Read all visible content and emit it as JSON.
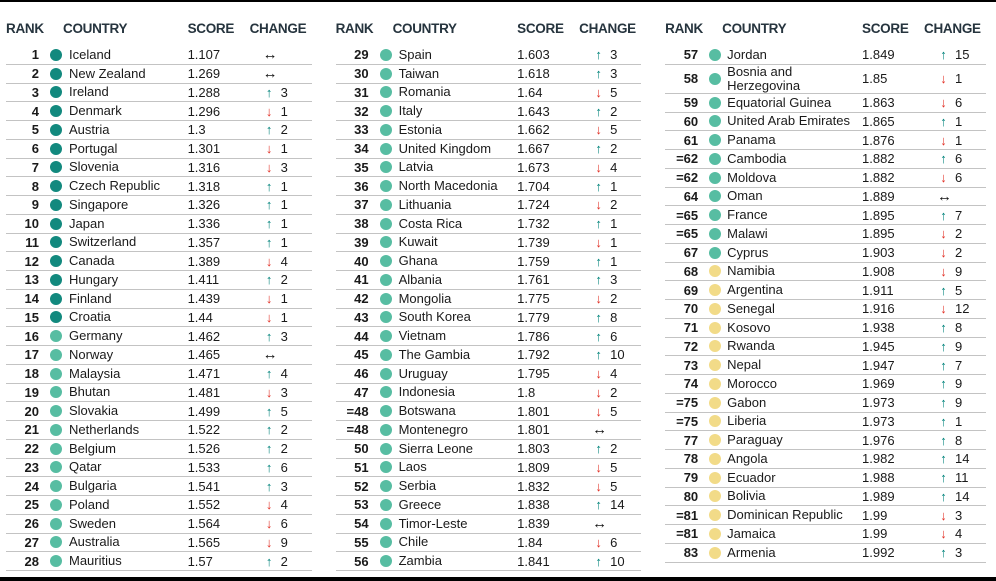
{
  "icons": {
    "up": "↑",
    "down": "↓",
    "same": "↔"
  },
  "colors": {
    "tier_dark": "#12897E",
    "tier_mid": "#57BDA2",
    "tier_yellow": "#F2DB88",
    "up_arrow": "#00837B",
    "down_arrow": "#E23127",
    "same_arrow": "#141414",
    "header_text": "#26343E",
    "body_text": "#1A1A1A",
    "row_line": "#C3C3C3",
    "frame": "#000000"
  },
  "chart_data": {
    "type": "table",
    "column_headers": [
      "RANK",
      "COUNTRY",
      "SCORE",
      "CHANGE"
    ],
    "legend_tiers": [
      "dark",
      "mid",
      "yellow"
    ],
    "column_groups": [
      {
        "rows": [
          {
            "rank": "1",
            "country": "Iceland",
            "score": "1.107",
            "tier": "dark",
            "change_dir": "same",
            "change_value": ""
          },
          {
            "rank": "2",
            "country": "New Zealand",
            "score": "1.269",
            "tier": "dark",
            "change_dir": "same",
            "change_value": ""
          },
          {
            "rank": "3",
            "country": "Ireland",
            "score": "1.288",
            "tier": "dark",
            "change_dir": "up",
            "change_value": "3"
          },
          {
            "rank": "4",
            "country": "Denmark",
            "score": "1.296",
            "tier": "dark",
            "change_dir": "down",
            "change_value": "1"
          },
          {
            "rank": "5",
            "country": "Austria",
            "score": "1.3",
            "tier": "dark",
            "change_dir": "up",
            "change_value": "2"
          },
          {
            "rank": "6",
            "country": "Portugal",
            "score": "1.301",
            "tier": "dark",
            "change_dir": "down",
            "change_value": "1"
          },
          {
            "rank": "7",
            "country": "Slovenia",
            "score": "1.316",
            "tier": "dark",
            "change_dir": "down",
            "change_value": "3"
          },
          {
            "rank": "8",
            "country": "Czech Republic",
            "score": "1.318",
            "tier": "dark",
            "change_dir": "up",
            "change_value": "1"
          },
          {
            "rank": "9",
            "country": "Singapore",
            "score": "1.326",
            "tier": "dark",
            "change_dir": "up",
            "change_value": "1"
          },
          {
            "rank": "10",
            "country": "Japan",
            "score": "1.336",
            "tier": "dark",
            "change_dir": "up",
            "change_value": "1"
          },
          {
            "rank": "11",
            "country": "Switzerland",
            "score": "1.357",
            "tier": "dark",
            "change_dir": "up",
            "change_value": "1"
          },
          {
            "rank": "12",
            "country": "Canada",
            "score": "1.389",
            "tier": "dark",
            "change_dir": "down",
            "change_value": "4"
          },
          {
            "rank": "13",
            "country": "Hungary",
            "score": "1.411",
            "tier": "dark",
            "change_dir": "up",
            "change_value": "2"
          },
          {
            "rank": "14",
            "country": "Finland",
            "score": "1.439",
            "tier": "dark",
            "change_dir": "down",
            "change_value": "1"
          },
          {
            "rank": "15",
            "country": "Croatia",
            "score": "1.44",
            "tier": "dark",
            "change_dir": "down",
            "change_value": "1"
          },
          {
            "rank": "16",
            "country": "Germany",
            "score": "1.462",
            "tier": "mid",
            "change_dir": "up",
            "change_value": "3"
          },
          {
            "rank": "17",
            "country": "Norway",
            "score": "1.465",
            "tier": "mid",
            "change_dir": "same",
            "change_value": ""
          },
          {
            "rank": "18",
            "country": "Malaysia",
            "score": "1.471",
            "tier": "mid",
            "change_dir": "up",
            "change_value": "4"
          },
          {
            "rank": "19",
            "country": "Bhutan",
            "score": "1.481",
            "tier": "mid",
            "change_dir": "down",
            "change_value": "3"
          },
          {
            "rank": "20",
            "country": "Slovakia",
            "score": "1.499",
            "tier": "mid",
            "change_dir": "up",
            "change_value": "5"
          },
          {
            "rank": "21",
            "country": "Netherlands",
            "score": "1.522",
            "tier": "mid",
            "change_dir": "up",
            "change_value": "2"
          },
          {
            "rank": "22",
            "country": "Belgium",
            "score": "1.526",
            "tier": "mid",
            "change_dir": "up",
            "change_value": "2"
          },
          {
            "rank": "23",
            "country": "Qatar",
            "score": "1.533",
            "tier": "mid",
            "change_dir": "up",
            "change_value": "6"
          },
          {
            "rank": "24",
            "country": "Bulgaria",
            "score": "1.541",
            "tier": "mid",
            "change_dir": "up",
            "change_value": "3"
          },
          {
            "rank": "25",
            "country": "Poland",
            "score": "1.552",
            "tier": "mid",
            "change_dir": "down",
            "change_value": "4"
          },
          {
            "rank": "26",
            "country": "Sweden",
            "score": "1.564",
            "tier": "mid",
            "change_dir": "down",
            "change_value": "6"
          },
          {
            "rank": "27",
            "country": "Australia",
            "score": "1.565",
            "tier": "mid",
            "change_dir": "down",
            "change_value": "9"
          },
          {
            "rank": "28",
            "country": "Mauritius",
            "score": "1.57",
            "tier": "mid",
            "change_dir": "up",
            "change_value": "2"
          }
        ]
      },
      {
        "rows": [
          {
            "rank": "29",
            "country": "Spain",
            "score": "1.603",
            "tier": "mid",
            "change_dir": "up",
            "change_value": "3"
          },
          {
            "rank": "30",
            "country": "Taiwan",
            "score": "1.618",
            "tier": "mid",
            "change_dir": "up",
            "change_value": "3"
          },
          {
            "rank": "31",
            "country": "Romania",
            "score": "1.64",
            "tier": "mid",
            "change_dir": "down",
            "change_value": "5"
          },
          {
            "rank": "32",
            "country": "Italy",
            "score": "1.643",
            "tier": "mid",
            "change_dir": "up",
            "change_value": "2"
          },
          {
            "rank": "33",
            "country": "Estonia",
            "score": "1.662",
            "tier": "mid",
            "change_dir": "down",
            "change_value": "5"
          },
          {
            "rank": "34",
            "country": "United Kingdom",
            "score": "1.667",
            "tier": "mid",
            "change_dir": "up",
            "change_value": "2"
          },
          {
            "rank": "35",
            "country": "Latvia",
            "score": "1.673",
            "tier": "mid",
            "change_dir": "down",
            "change_value": "4"
          },
          {
            "rank": "36",
            "country": "North Macedonia",
            "score": "1.704",
            "tier": "mid",
            "change_dir": "up",
            "change_value": "1"
          },
          {
            "rank": "37",
            "country": "Lithuania",
            "score": "1.724",
            "tier": "mid",
            "change_dir": "down",
            "change_value": "2"
          },
          {
            "rank": "38",
            "country": "Costa Rica",
            "score": "1.732",
            "tier": "mid",
            "change_dir": "up",
            "change_value": "1"
          },
          {
            "rank": "39",
            "country": "Kuwait",
            "score": "1.739",
            "tier": "mid",
            "change_dir": "down",
            "change_value": "1"
          },
          {
            "rank": "40",
            "country": "Ghana",
            "score": "1.759",
            "tier": "mid",
            "change_dir": "up",
            "change_value": "1"
          },
          {
            "rank": "41",
            "country": "Albania",
            "score": "1.761",
            "tier": "mid",
            "change_dir": "up",
            "change_value": "3"
          },
          {
            "rank": "42",
            "country": "Mongolia",
            "score": "1.775",
            "tier": "mid",
            "change_dir": "down",
            "change_value": "2"
          },
          {
            "rank": "43",
            "country": "South Korea",
            "score": "1.779",
            "tier": "mid",
            "change_dir": "up",
            "change_value": "8"
          },
          {
            "rank": "44",
            "country": "Vietnam",
            "score": "1.786",
            "tier": "mid",
            "change_dir": "up",
            "change_value": "6"
          },
          {
            "rank": "45",
            "country": "The Gambia",
            "score": "1.792",
            "tier": "mid",
            "change_dir": "up",
            "change_value": "10"
          },
          {
            "rank": "46",
            "country": "Uruguay",
            "score": "1.795",
            "tier": "mid",
            "change_dir": "down",
            "change_value": "4"
          },
          {
            "rank": "47",
            "country": "Indonesia",
            "score": "1.8",
            "tier": "mid",
            "change_dir": "down",
            "change_value": "2"
          },
          {
            "rank": "=48",
            "country": "Botswana",
            "score": "1.801",
            "tier": "mid",
            "change_dir": "down",
            "change_value": "5"
          },
          {
            "rank": "=48",
            "country": "Montenegro",
            "score": "1.801",
            "tier": "mid",
            "change_dir": "same",
            "change_value": ""
          },
          {
            "rank": "50",
            "country": "Sierra Leone",
            "score": "1.803",
            "tier": "mid",
            "change_dir": "up",
            "change_value": "2"
          },
          {
            "rank": "51",
            "country": "Laos",
            "score": "1.809",
            "tier": "mid",
            "change_dir": "down",
            "change_value": "5"
          },
          {
            "rank": "52",
            "country": "Serbia",
            "score": "1.832",
            "tier": "mid",
            "change_dir": "down",
            "change_value": "5"
          },
          {
            "rank": "53",
            "country": "Greece",
            "score": "1.838",
            "tier": "mid",
            "change_dir": "up",
            "change_value": "14"
          },
          {
            "rank": "54",
            "country": "Timor-Leste",
            "score": "1.839",
            "tier": "mid",
            "change_dir": "same",
            "change_value": ""
          },
          {
            "rank": "55",
            "country": "Chile",
            "score": "1.84",
            "tier": "mid",
            "change_dir": "down",
            "change_value": "6"
          },
          {
            "rank": "56",
            "country": "Zambia",
            "score": "1.841",
            "tier": "mid",
            "change_dir": "up",
            "change_value": "10"
          }
        ]
      },
      {
        "rows": [
          {
            "rank": "57",
            "country": "Jordan",
            "score": "1.849",
            "tier": "mid",
            "change_dir": "up",
            "change_value": "15"
          },
          {
            "rank": "58",
            "country": "Bosnia and Herzegovina",
            "score": "1.85",
            "tier": "mid",
            "change_dir": "down",
            "change_value": "1"
          },
          {
            "rank": "59",
            "country": "Equatorial Guinea",
            "score": "1.863",
            "tier": "mid",
            "change_dir": "down",
            "change_value": "6"
          },
          {
            "rank": "60",
            "country": "United Arab Emirates",
            "score": "1.865",
            "tier": "mid",
            "change_dir": "up",
            "change_value": "1"
          },
          {
            "rank": "61",
            "country": "Panama",
            "score": "1.876",
            "tier": "mid",
            "change_dir": "down",
            "change_value": "1"
          },
          {
            "rank": "=62",
            "country": "Cambodia",
            "score": "1.882",
            "tier": "mid",
            "change_dir": "up",
            "change_value": "6"
          },
          {
            "rank": "=62",
            "country": "Moldova",
            "score": "1.882",
            "tier": "mid",
            "change_dir": "down",
            "change_value": "6"
          },
          {
            "rank": "64",
            "country": "Oman",
            "score": "1.889",
            "tier": "mid",
            "change_dir": "same",
            "change_value": ""
          },
          {
            "rank": "=65",
            "country": "France",
            "score": "1.895",
            "tier": "mid",
            "change_dir": "up",
            "change_value": "7"
          },
          {
            "rank": "=65",
            "country": "Malawi",
            "score": "1.895",
            "tier": "mid",
            "change_dir": "down",
            "change_value": "2"
          },
          {
            "rank": "67",
            "country": "Cyprus",
            "score": "1.903",
            "tier": "mid",
            "change_dir": "down",
            "change_value": "2"
          },
          {
            "rank": "68",
            "country": "Namibia",
            "score": "1.908",
            "tier": "yellow",
            "change_dir": "down",
            "change_value": "9"
          },
          {
            "rank": "69",
            "country": "Argentina",
            "score": "1.911",
            "tier": "yellow",
            "change_dir": "up",
            "change_value": "5"
          },
          {
            "rank": "70",
            "country": "Senegal",
            "score": "1.916",
            "tier": "yellow",
            "change_dir": "down",
            "change_value": "12"
          },
          {
            "rank": "71",
            "country": "Kosovo",
            "score": "1.938",
            "tier": "yellow",
            "change_dir": "up",
            "change_value": "8"
          },
          {
            "rank": "72",
            "country": "Rwanda",
            "score": "1.945",
            "tier": "yellow",
            "change_dir": "up",
            "change_value": "9"
          },
          {
            "rank": "73",
            "country": "Nepal",
            "score": "1.947",
            "tier": "yellow",
            "change_dir": "up",
            "change_value": "7"
          },
          {
            "rank": "74",
            "country": "Morocco",
            "score": "1.969",
            "tier": "yellow",
            "change_dir": "up",
            "change_value": "9"
          },
          {
            "rank": "=75",
            "country": "Gabon",
            "score": "1.973",
            "tier": "yellow",
            "change_dir": "up",
            "change_value": "9"
          },
          {
            "rank": "=75",
            "country": "Liberia",
            "score": "1.973",
            "tier": "yellow",
            "change_dir": "up",
            "change_value": "1"
          },
          {
            "rank": "77",
            "country": "Paraguay",
            "score": "1.976",
            "tier": "yellow",
            "change_dir": "up",
            "change_value": "8"
          },
          {
            "rank": "78",
            "country": "Angola",
            "score": "1.982",
            "tier": "yellow",
            "change_dir": "up",
            "change_value": "14"
          },
          {
            "rank": "79",
            "country": "Ecuador",
            "score": "1.988",
            "tier": "yellow",
            "change_dir": "up",
            "change_value": "11"
          },
          {
            "rank": "80",
            "country": "Bolivia",
            "score": "1.989",
            "tier": "yellow",
            "change_dir": "up",
            "change_value": "14"
          },
          {
            "rank": "=81",
            "country": "Dominican Republic",
            "score": "1.99",
            "tier": "yellow",
            "change_dir": "down",
            "change_value": "3"
          },
          {
            "rank": "=81",
            "country": "Jamaica",
            "score": "1.99",
            "tier": "yellow",
            "change_dir": "down",
            "change_value": "4"
          },
          {
            "rank": "83",
            "country": "Armenia",
            "score": "1.992",
            "tier": "yellow",
            "change_dir": "up",
            "change_value": "3"
          }
        ]
      }
    ]
  }
}
